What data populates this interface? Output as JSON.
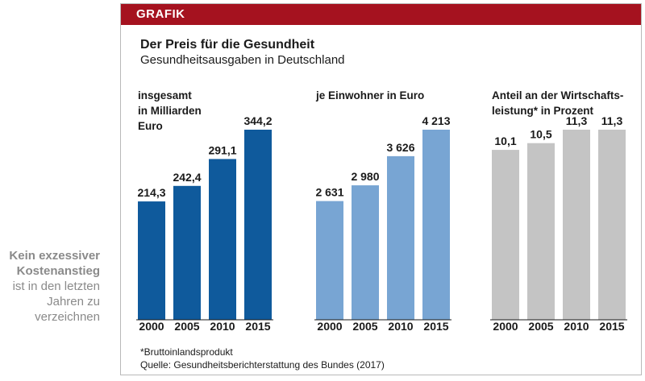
{
  "side_caption": {
    "line1": "Kein exzessiver",
    "line2": "Kostenanstieg",
    "line3": "ist in den letzten",
    "line4": "Jahren zu",
    "line5": "verzeichnen"
  },
  "header": {
    "label": "GRAFIK"
  },
  "title": "Der Preis für die Gesundheit",
  "subtitle": "Gesundheitsausgaben in Deutschland",
  "footnote": "*Bruttoinlandsprodukt",
  "source": "Quelle: Gesundheitsberichterstattung des Bundes (2017)",
  "colors": {
    "header": "#a5121f",
    "series1": "#0f5a9c",
    "series2": "#78a5d3",
    "series3": "#c4c4c4"
  },
  "chart_data": [
    {
      "type": "bar",
      "title": "insgesamt in Milliarden Euro",
      "label_lines": [
        "insgesamt",
        "in Milliarden",
        "Euro"
      ],
      "categories": [
        "2000",
        "2005",
        "2010",
        "2015"
      ],
      "values": [
        214.3,
        242.4,
        291.1,
        344.2
      ],
      "value_labels": [
        "214,3",
        "242,4",
        "291,1",
        "344,2"
      ],
      "ylim": [
        0,
        344.2
      ]
    },
    {
      "type": "bar",
      "title": "je Einwohner in Euro",
      "label_lines": [
        "je Einwohner in Euro"
      ],
      "categories": [
        "2000",
        "2005",
        "2010",
        "2015"
      ],
      "values": [
        2631,
        2980,
        3626,
        4213
      ],
      "value_labels": [
        "2 631",
        "2 980",
        "3 626",
        "4 213"
      ],
      "ylim": [
        0,
        4213
      ]
    },
    {
      "type": "bar",
      "title": "Anteil an der Wirtschaftsleistung* in Prozent",
      "label_lines": [
        "Anteil an der Wirtschafts-",
        "leistung* in Prozent"
      ],
      "categories": [
        "2000",
        "2005",
        "2010",
        "2015"
      ],
      "values": [
        10.1,
        10.5,
        11.3,
        11.3
      ],
      "value_labels": [
        "10,1",
        "10,5",
        "11,3",
        "11,3"
      ],
      "ylim": [
        0,
        11.3
      ]
    }
  ]
}
